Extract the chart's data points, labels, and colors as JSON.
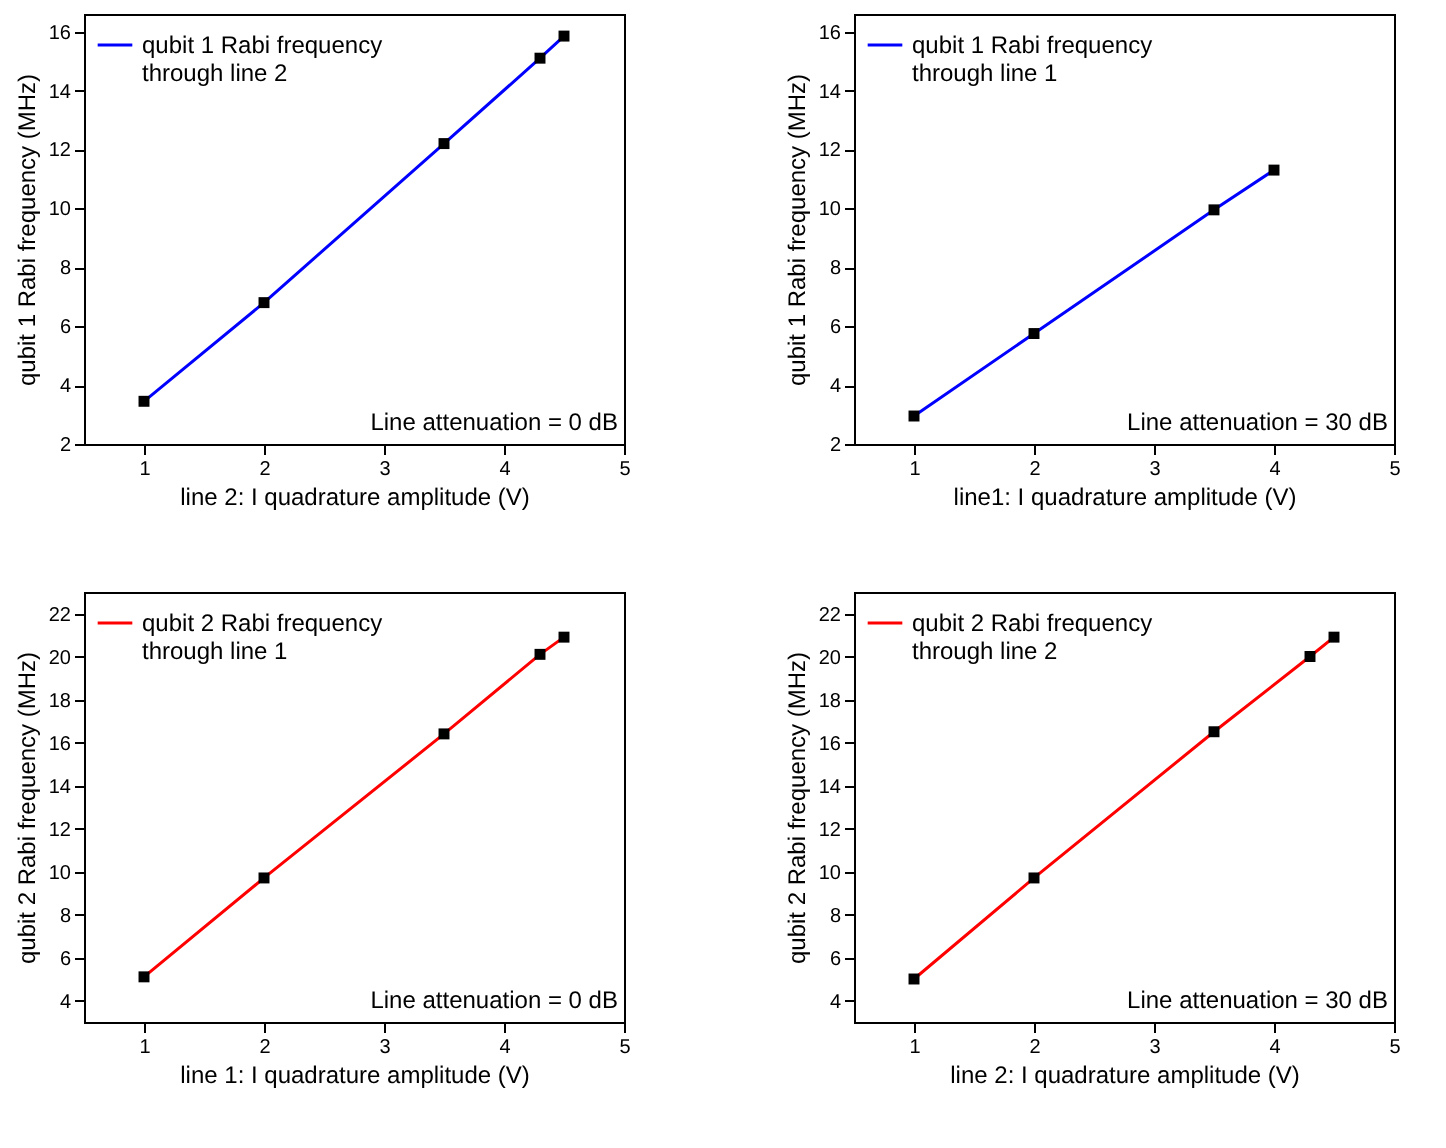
{
  "chart_data": [
    {
      "type": "line",
      "xlabel": "line 2: I quadrature amplitude (V)",
      "ylabel": "qubit 1 Rabi frequency (MHz)",
      "x": [
        1,
        2,
        3.5,
        4.3,
        4.5
      ],
      "series": [
        {
          "name": "qubit 1 Rabi frequency\nthrough line 2",
          "color": "#0000ff",
          "values": [
            3.45,
            6.8,
            12.2,
            15.1,
            15.85
          ]
        }
      ],
      "xlim": [
        0.5,
        5
      ],
      "xticks": [
        1,
        2,
        3,
        4,
        5
      ],
      "ylim": [
        2,
        16.6
      ],
      "yticks": [
        2,
        4,
        6,
        8,
        10,
        12,
        14,
        16
      ],
      "marker": "square",
      "legend": "top left",
      "annotations": [
        "Line attenuation = 0 dB"
      ]
    },
    {
      "type": "line",
      "xlabel": "line1: I quadrature amplitude (V)",
      "ylabel": "qubit 1 Rabi frequency (MHz)",
      "x": [
        1,
        2,
        3.5,
        4
      ],
      "series": [
        {
          "name": "qubit 1 Rabi frequency\nthrough line 1",
          "color": "#0000ff",
          "values": [
            2.95,
            5.75,
            9.95,
            11.3
          ]
        }
      ],
      "xlim": [
        0.5,
        5
      ],
      "xticks": [
        1,
        2,
        3,
        4,
        5
      ],
      "ylim": [
        2,
        16.6
      ],
      "yticks": [
        2,
        4,
        6,
        8,
        10,
        12,
        14,
        16
      ],
      "marker": "square",
      "legend": "top left",
      "annotations": [
        "Line attenuation = 30 dB"
      ]
    },
    {
      "type": "line",
      "xlabel": "line 1: I quadrature amplitude (V)",
      "ylabel": "qubit 2 Rabi frequency (MHz)",
      "x": [
        1,
        2,
        3.5,
        4.3,
        4.5
      ],
      "series": [
        {
          "name": "qubit 2 Rabi frequency\nthrough line 1",
          "color": "#ff0000",
          "values": [
            5.1,
            9.7,
            16.4,
            20.1,
            20.9
          ]
        }
      ],
      "xlim": [
        0.5,
        5
      ],
      "xticks": [
        1,
        2,
        3,
        4,
        5
      ],
      "ylim": [
        3,
        23
      ],
      "yticks": [
        4,
        6,
        8,
        10,
        12,
        14,
        16,
        18,
        20,
        22
      ],
      "marker": "square",
      "legend": "top left",
      "annotations": [
        "Line attenuation = 0 dB"
      ]
    },
    {
      "type": "line",
      "xlabel": "line 2: I quadrature amplitude (V)",
      "ylabel": "qubit 2 Rabi frequency (MHz)",
      "x": [
        1,
        2,
        3.5,
        4.3,
        4.5
      ],
      "series": [
        {
          "name": "qubit 2 Rabi frequency\nthrough line 2",
          "color": "#ff0000",
          "values": [
            5.0,
            9.7,
            16.5,
            20.0,
            20.9
          ]
        }
      ],
      "xlim": [
        0.5,
        5
      ],
      "xticks": [
        1,
        2,
        3,
        4,
        5
      ],
      "ylim": [
        3,
        23
      ],
      "yticks": [
        4,
        6,
        8,
        10,
        12,
        14,
        16,
        18,
        20,
        22
      ],
      "marker": "square",
      "legend": "top left",
      "annotations": [
        "Line attenuation = 30 dB"
      ]
    }
  ]
}
